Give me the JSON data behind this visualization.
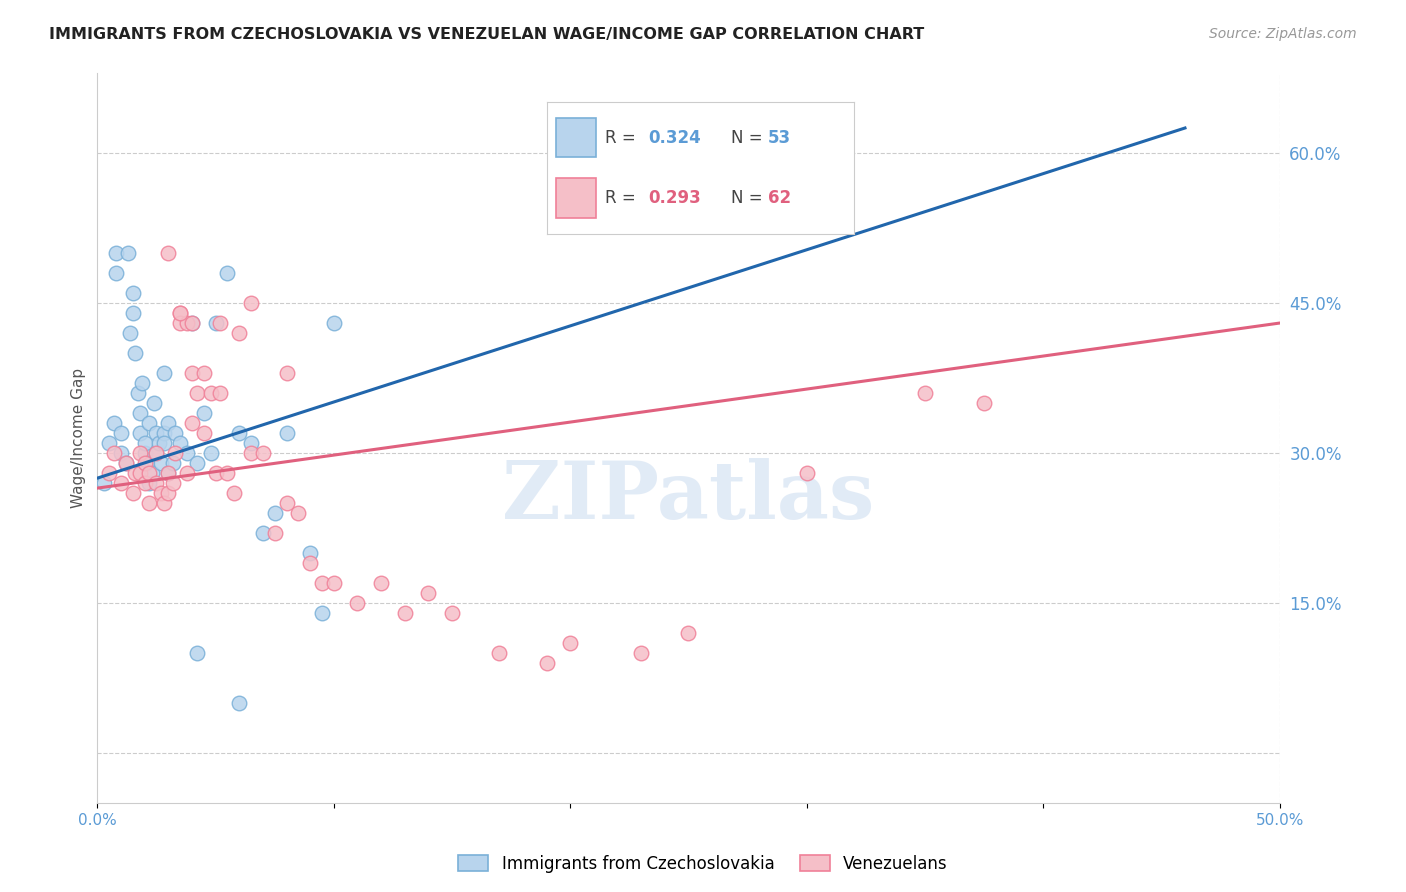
{
  "title": "IMMIGRANTS FROM CZECHOSLOVAKIA VS VENEZUELAN WAGE/INCOME GAP CORRELATION CHART",
  "source": "Source: ZipAtlas.com",
  "ylabel": "Wage/Income Gap",
  "right_ytick_labels": [
    "",
    "15.0%",
    "30.0%",
    "45.0%",
    "60.0%"
  ],
  "right_yticks": [
    0.0,
    0.15,
    0.3,
    0.45,
    0.6
  ],
  "xlim": [
    0.0,
    0.5
  ],
  "ylim": [
    -0.05,
    0.68
  ],
  "legend_r1": "0.324",
  "legend_n1": "53",
  "legend_r2": "0.293",
  "legend_n2": "62",
  "watermark": "ZIPatlas",
  "blue_line": [
    0.0,
    0.275,
    0.46,
    0.625
  ],
  "pink_line": [
    0.0,
    0.265,
    0.5,
    0.43
  ],
  "blue_scatter_x": [
    0.003,
    0.005,
    0.007,
    0.008,
    0.008,
    0.01,
    0.01,
    0.012,
    0.013,
    0.014,
    0.015,
    0.015,
    0.016,
    0.017,
    0.018,
    0.018,
    0.019,
    0.02,
    0.02,
    0.021,
    0.022,
    0.022,
    0.023,
    0.024,
    0.025,
    0.025,
    0.026,
    0.027,
    0.028,
    0.028,
    0.03,
    0.03,
    0.032,
    0.033,
    0.035,
    0.038,
    0.04,
    0.042,
    0.045,
    0.048,
    0.05,
    0.055,
    0.06,
    0.065,
    0.07,
    0.075,
    0.08,
    0.09,
    0.095,
    0.1,
    0.06,
    0.042,
    0.028
  ],
  "blue_scatter_y": [
    0.27,
    0.31,
    0.33,
    0.5,
    0.48,
    0.3,
    0.32,
    0.29,
    0.5,
    0.42,
    0.46,
    0.44,
    0.4,
    0.36,
    0.34,
    0.32,
    0.37,
    0.3,
    0.31,
    0.29,
    0.27,
    0.33,
    0.28,
    0.35,
    0.3,
    0.32,
    0.31,
    0.29,
    0.38,
    0.32,
    0.28,
    0.33,
    0.29,
    0.32,
    0.31,
    0.3,
    0.43,
    0.29,
    0.34,
    0.3,
    0.43,
    0.48,
    0.32,
    0.31,
    0.22,
    0.24,
    0.32,
    0.2,
    0.14,
    0.43,
    0.05,
    0.1,
    0.31
  ],
  "pink_scatter_x": [
    0.005,
    0.007,
    0.01,
    0.012,
    0.015,
    0.016,
    0.018,
    0.018,
    0.02,
    0.02,
    0.022,
    0.022,
    0.025,
    0.025,
    0.027,
    0.028,
    0.03,
    0.03,
    0.032,
    0.033,
    0.035,
    0.035,
    0.038,
    0.038,
    0.04,
    0.04,
    0.042,
    0.045,
    0.045,
    0.048,
    0.05,
    0.052,
    0.055,
    0.058,
    0.06,
    0.065,
    0.07,
    0.075,
    0.08,
    0.085,
    0.09,
    0.095,
    0.1,
    0.11,
    0.12,
    0.13,
    0.14,
    0.15,
    0.17,
    0.19,
    0.2,
    0.23,
    0.25,
    0.3,
    0.35,
    0.375,
    0.03,
    0.035,
    0.04,
    0.052,
    0.065,
    0.08
  ],
  "pink_scatter_y": [
    0.28,
    0.3,
    0.27,
    0.29,
    0.26,
    0.28,
    0.28,
    0.3,
    0.27,
    0.29,
    0.25,
    0.28,
    0.3,
    0.27,
    0.26,
    0.25,
    0.28,
    0.26,
    0.27,
    0.3,
    0.44,
    0.43,
    0.43,
    0.28,
    0.33,
    0.38,
    0.36,
    0.38,
    0.32,
    0.36,
    0.28,
    0.36,
    0.28,
    0.26,
    0.42,
    0.3,
    0.3,
    0.22,
    0.25,
    0.24,
    0.19,
    0.17,
    0.17,
    0.15,
    0.17,
    0.14,
    0.16,
    0.14,
    0.1,
    0.09,
    0.11,
    0.1,
    0.12,
    0.28,
    0.36,
    0.35,
    0.5,
    0.44,
    0.43,
    0.43,
    0.45,
    0.38
  ]
}
